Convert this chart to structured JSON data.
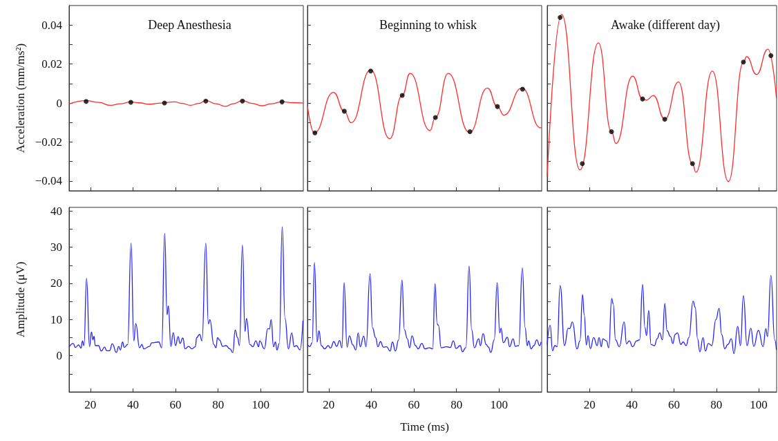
{
  "chart_data": [
    {
      "type": "line",
      "title": "Deep Anesthesia",
      "ylabel": "Acceleration (mm/ms²)",
      "xlim": [
        10,
        120
      ],
      "xticks": [
        20,
        40,
        60,
        80,
        100
      ],
      "ylim": [
        -0.045,
        0.05
      ],
      "yticks": [
        {
          "value": -0.04,
          "label": "−0.04"
        },
        {
          "value": -0.03,
          "label": null
        },
        {
          "value": -0.02,
          "label": "−0.02"
        },
        {
          "value": -0.01,
          "label": null
        },
        0,
        {
          "value": 0.01,
          "label": null
        },
        0.02,
        {
          "value": 0.03,
          "label": null
        },
        0.04
      ],
      "tick_labels": "y",
      "series": [
        {
          "type": "line",
          "color": "#ff2a2a",
          "x": [
            10,
            18,
            24,
            29.4,
            34,
            39,
            43,
            47.8,
            53,
            59.6,
            63,
            67,
            71,
            74.2,
            79,
            83.4,
            87,
            91.4,
            96,
            100.6,
            105,
            110,
            115,
            120
          ],
          "values": [
            -0.0005,
            0.0012,
            0.0003,
            -0.0012,
            -0.0004,
            0.0006,
            0.0001,
            -0.0006,
            0,
            0.0006,
            -0.0002,
            -0.0012,
            -0.0002,
            0.0013,
            -0.0004,
            -0.0017,
            -0.0004,
            0.0012,
            -0.0002,
            -0.0014,
            -0.0004,
            0.0007,
            0.0002,
            0
          ]
        },
        {
          "type": "scatter",
          "marker": "circle",
          "color": "#000000",
          "x": [
            18,
            39,
            54.8,
            74.2,
            91.4,
            110
          ],
          "values": [
            0.0008,
            0.0004,
            0,
            0.001,
            0.001,
            0.0006
          ]
        }
      ]
    },
    {
      "type": "line",
      "title": "Beginning to whisk",
      "xlim": [
        10,
        120
      ],
      "xticks": [
        20,
        40,
        60,
        80,
        100
      ],
      "ylim": [
        -0.045,
        0.05
      ],
      "yticks": [
        {
          "value": -0.04,
          "label": null
        },
        {
          "value": -0.03,
          "label": null
        },
        {
          "value": -0.02,
          "label": null
        },
        {
          "value": -0.01,
          "label": null
        },
        {
          "value": 0,
          "label": null
        },
        {
          "value": 0.01,
          "label": null
        },
        {
          "value": 0.02,
          "label": null
        },
        {
          "value": 0.03,
          "label": null
        },
        {
          "value": 0.04,
          "label": null
        }
      ],
      "tick_labels": false,
      "series": [
        {
          "type": "line",
          "color": "#ff2a2a",
          "x": [
            10,
            13.2,
            22.2,
            27.3,
            30.5,
            39.7,
            48.6,
            54.5,
            58.2,
            67.5,
            70.1,
            76.1,
            86.1,
            94.5,
            99.2,
            102.2,
            110.7,
            119.5,
            120
          ],
          "values": [
            -0.0014,
            -0.0153,
            0.0055,
            -0.0042,
            -0.0101,
            0.017,
            -0.0183,
            0.0039,
            0.0152,
            -0.0141,
            -0.0074,
            0.0152,
            -0.0151,
            0.0077,
            -0.0018,
            -0.0062,
            0.0077,
            -0.0127,
            -0.0127
          ]
        },
        {
          "type": "scatter",
          "marker": "circle",
          "color": "#000000",
          "x": [
            13.5,
            27.3,
            39.7,
            54.5,
            70.1,
            86.3,
            99.2,
            111
          ],
          "values": [
            -0.0153,
            -0.0042,
            0.0164,
            0.0039,
            -0.0074,
            -0.0147,
            -0.0018,
            0.0071
          ]
        }
      ]
    },
    {
      "type": "line",
      "title": "Awake (different day)",
      "xlim": [
        0,
        108.5
      ],
      "xticks": [
        20,
        40,
        60,
        80,
        100
      ],
      "ylim": [
        -0.045,
        0.05
      ],
      "yticks": [
        {
          "value": -0.04,
          "label": null
        },
        {
          "value": -0.03,
          "label": null
        },
        {
          "value": -0.02,
          "label": null
        },
        {
          "value": -0.01,
          "label": null
        },
        {
          "value": 0,
          "label": null
        },
        {
          "value": 0.01,
          "label": null
        },
        {
          "value": 0.02,
          "label": null
        },
        {
          "value": 0.03,
          "label": null
        },
        {
          "value": 0.04,
          "label": null
        }
      ],
      "tick_labels": false,
      "series": [
        {
          "type": "line",
          "color": "#ff2a2a",
          "x": [
            0,
            6.8,
            15.5,
            24.2,
            30.4,
            32.5,
            40.4,
            45.1,
            47,
            50.2,
            55.6,
            62.1,
            68.7,
            70.3,
            78.1,
            85.7,
            92.8,
            94.3,
            99,
            104.4,
            108.4
          ],
          "values": [
            -0.0376,
            0.0454,
            -0.0343,
            0.0308,
            -0.0147,
            -0.0208,
            0.0138,
            0.0021,
            0.0015,
            0.0039,
            -0.0083,
            0.0108,
            -0.0311,
            -0.0355,
            0.0164,
            -0.0403,
            0.021,
            0.0238,
            0.0146,
            0.0276,
            0.0027
          ]
        },
        {
          "type": "scatter",
          "marker": "circle",
          "color": "#000000",
          "x": [
            6.1,
            16.6,
            30.4,
            45.1,
            55.6,
            68.7,
            92.8,
            105.8
          ],
          "values": [
            0.0439,
            -0.0311,
            -0.0147,
            0.0021,
            -0.0083,
            -0.0311,
            0.021,
            0.0243
          ]
        }
      ]
    },
    {
      "type": "line",
      "ylabel": "Amplitude (μV)",
      "xlim": [
        10,
        120
      ],
      "xticks": [
        20,
        40,
        60,
        80,
        100
      ],
      "ylim": [
        -10,
        41
      ],
      "yticks": [
        {
          "value": -10,
          "label": null
        },
        {
          "value": -5,
          "label": null
        },
        0,
        {
          "value": 5,
          "label": null
        },
        10,
        {
          "value": 15,
          "label": null
        },
        20,
        {
          "value": 25,
          "label": null
        },
        30,
        {
          "value": 35,
          "label": null
        },
        40
      ],
      "series": [
        {
          "type": "line",
          "color": "#2020ff",
          "x": [
            10,
            11.9,
            13,
            14.5,
            15.6,
            16.3,
            17,
            18.2,
            19.6,
            20.5,
            21.2,
            21.7,
            22.3,
            23.8,
            25.1,
            26.7,
            27.6,
            29,
            30.3,
            32.2,
            33.3,
            34.1,
            35.1,
            35.9,
            37.5,
            39.1,
            40.4,
            41.3,
            43.1,
            44.2,
            45.1,
            47.8,
            48.8,
            52.1,
            53.5,
            54.9,
            56,
            56.6,
            57.8,
            58.9,
            60,
            61.2,
            62.1,
            63.4,
            64.5,
            66.1,
            67.7,
            69.3,
            69.9,
            71.3,
            72.4,
            74.2,
            75.4,
            76.1,
            78,
            79,
            79.7,
            80.7,
            82.1,
            83.7,
            85.5,
            86.9,
            88,
            89.1,
            90,
            91.4,
            92.6,
            93.3,
            94.9,
            96.3,
            97.7,
            99,
            99.5,
            101.7,
            103.3,
            104.1,
            104.9,
            106,
            106.9,
            107.6,
            108.7,
            110.1,
            111.4,
            113,
            114.6,
            115.7,
            116.8,
            118.4,
            119.8
          ],
          "values": [
            2.4,
            3.4,
            2.3,
            3,
            2.1,
            4.1,
            2.8,
            21.4,
            2.5,
            6.6,
            4.4,
            5.4,
            2.8,
            2.8,
            1.3,
            2.4,
            1.4,
            1.4,
            3.3,
            0.9,
            2.6,
            1.6,
            3.8,
            2.3,
            3.1,
            31.1,
            4.1,
            8.9,
            2.2,
            3.1,
            1.9,
            2.6,
            3.6,
            3.8,
            2.2,
            33.8,
            11.3,
            13.8,
            2.6,
            6.4,
            2.8,
            5.3,
            3.4,
            4.9,
            1.9,
            2.6,
            1.9,
            2.5,
            5,
            5.9,
            4.1,
            31.1,
            8.8,
            10,
            3.1,
            2.2,
            5,
            4.3,
            2.6,
            2.8,
            1.9,
            0.9,
            7.1,
            5,
            2.8,
            30.6,
            6.7,
            10.3,
            3.1,
            2.5,
            4.1,
            2.5,
            4.1,
            1.9,
            7.5,
            7.4,
            10,
            2.5,
            3.8,
            1.6,
            3.4,
            35.6,
            10.3,
            1.9,
            6.3,
            2.5,
            2.8,
            1.6,
            9.7
          ]
        }
      ]
    },
    {
      "type": "line",
      "xlabel": "Time (ms)",
      "xlim": [
        10,
        120
      ],
      "xticks": [
        20,
        40,
        60,
        80,
        100
      ],
      "ylim": [
        -10,
        41
      ],
      "yticks": [
        {
          "value": -10,
          "label": null
        },
        {
          "value": -5,
          "label": null
        },
        0,
        {
          "value": 5,
          "label": null
        },
        10,
        {
          "value": 15,
          "label": null
        },
        20,
        {
          "value": 25,
          "label": null
        },
        30,
        {
          "value": 35,
          "label": null
        },
        40
      ],
      "tick_labels": "x",
      "series": [
        {
          "type": "line",
          "color": "#2020ff",
          "x": [
            10,
            11.1,
            12.2,
            13.3,
            14.5,
            15.4,
            16.5,
            18.1,
            19.7,
            20.8,
            22.4,
            23.7,
            25.1,
            26.2,
            27.2,
            28.6,
            29.7,
            31.3,
            32.7,
            33.8,
            34.8,
            36.4,
            37.5,
            39.4,
            40.5,
            42,
            43.1,
            44.3,
            45.6,
            47.2,
            48.8,
            49.9,
            51.3,
            52.8,
            54.4,
            55.5,
            56.9,
            58,
            59.1,
            60.7,
            62,
            63.7,
            65.2,
            67.2,
            68.8,
            69.9,
            70.9,
            71.5,
            72.8,
            75.3,
            77.1,
            78.5,
            79.8,
            81.7,
            82.8,
            84.4,
            85.9,
            87.1,
            88.4,
            90.4,
            91.2,
            92.5,
            93.9,
            95,
            96.1,
            97.7,
            99.1,
            100.3,
            100.9,
            102,
            103.9,
            104.9,
            106.6,
            107.6,
            109.2,
            110.9,
            112.2,
            113.2,
            113.9,
            115,
            116.3,
            117.7,
            119,
            119.7
          ],
          "values": [
            3.1,
            2.5,
            3.6,
            25.8,
            3.8,
            6.9,
            2.8,
            1.9,
            2.8,
            2.1,
            3.9,
            2.6,
            4.2,
            2.2,
            20.2,
            2.4,
            5.5,
            3,
            1.6,
            6.3,
            2.5,
            5.4,
            2.5,
            22.7,
            7.8,
            5,
            2.5,
            3.9,
            2.4,
            2.5,
            1.3,
            3.8,
            1.3,
            4.4,
            20.9,
            7.2,
            4.7,
            2.2,
            5.5,
            2.8,
            1.9,
            3.4,
            1.9,
            2.2,
            1.9,
            19.9,
            8.8,
            8.4,
            2.2,
            2.5,
            2.3,
            4.1,
            2,
            2.8,
            1.1,
            2.3,
            24.8,
            7.2,
            2.2,
            4.7,
            2.8,
            6.1,
            3.1,
            2.4,
            0.9,
            4.4,
            20.2,
            6.3,
            7.6,
            3.6,
            5.1,
            2.5,
            4.7,
            2.6,
            2.8,
            24.3,
            7.8,
            2.8,
            4.1,
            1.9,
            2.8,
            4.4,
            2.8,
            3.8
          ]
        }
      ]
    },
    {
      "type": "line",
      "xlim": [
        0,
        108.5
      ],
      "xticks": [
        20,
        40,
        60,
        80,
        100
      ],
      "ylim": [
        -10,
        41
      ],
      "yticks": [
        {
          "value": -10,
          "label": null
        },
        {
          "value": -5,
          "label": null
        },
        0,
        {
          "value": 5,
          "label": null
        },
        10,
        {
          "value": 15,
          "label": null
        },
        20,
        {
          "value": 25,
          "label": null
        },
        30,
        {
          "value": 35,
          "label": null
        },
        40
      ],
      "tick_labels": "x",
      "series": [
        {
          "type": "line",
          "color": "#2020ff",
          "x": [
            0,
            1.4,
            2.5,
            3.6,
            4.7,
            6.1,
            8.2,
            9.9,
            10.6,
            11.9,
            14.1,
            15.5,
            16.7,
            17.5,
            18.5,
            19.3,
            20.4,
            22,
            23.6,
            24.5,
            25.6,
            26.3,
            28,
            29.1,
            30.5,
            31.2,
            32.3,
            34.1,
            36.4,
            37.5,
            38.8,
            40.4,
            42.3,
            43.7,
            45.1,
            46.2,
            47,
            48,
            49.1,
            50.7,
            52,
            53.2,
            54.5,
            55.6,
            56.7,
            58.3,
            59.4,
            60.5,
            61.6,
            63.2,
            64.3,
            65.7,
            67,
            69,
            70,
            71.1,
            72.2,
            73.7,
            74.8,
            76.2,
            77.8,
            79.8,
            81.3,
            82.5,
            84,
            85.4,
            87.1,
            88.3,
            90.1,
            91.4,
            92.8,
            94.5,
            96.3,
            97.7,
            99.9,
            102.1,
            103.4,
            104.2,
            105.8,
            107.6,
            108.4
          ],
          "values": [
            3.1,
            8.4,
            1.4,
            2.8,
            2.5,
            19.4,
            2.8,
            7.6,
            7.5,
            9.3,
            1.9,
            4.1,
            16.9,
            11.3,
            3,
            5.6,
            2,
            5,
            2.8,
            5,
            2.5,
            4.7,
            4.1,
            2.2,
            15.8,
            14.4,
            4.4,
            2.5,
            9.3,
            3.3,
            4.1,
            2.5,
            4.1,
            4.4,
            19.7,
            7.8,
            5.6,
            12.5,
            3.1,
            2.8,
            4.7,
            6.3,
            4.4,
            14.4,
            6.9,
            5.3,
            3.4,
            5.9,
            6.3,
            3.1,
            3.8,
            2.8,
            5,
            15.1,
            13.4,
            4.7,
            1.1,
            5,
            1.3,
            3.4,
            2.8,
            10,
            13.1,
            5.9,
            1.9,
            3.1,
            4.7,
            0.6,
            8.1,
            2.8,
            16.6,
            2.8,
            7.6,
            2.6,
            7,
            2.5,
            7.5,
            5.3,
            22.2,
            4.4,
            1.6
          ]
        }
      ]
    }
  ]
}
